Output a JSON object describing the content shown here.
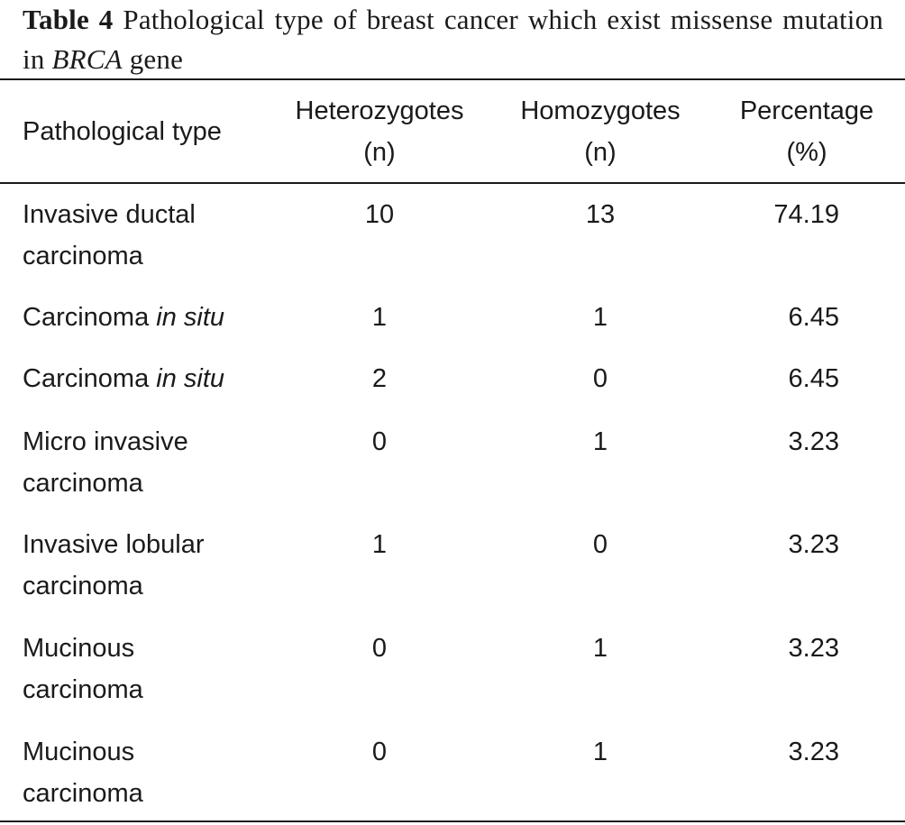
{
  "caption": {
    "label": "Table 4",
    "text_before_italic": " Pathological type of breast cancer which exist missense mutation in ",
    "italic": "BRCA",
    "text_after_italic": " gene"
  },
  "table": {
    "headers": {
      "pathological_type": "Pathological type",
      "heterozygotes_line1": "Heterozygotes",
      "heterozygotes_line2": "(n)",
      "homozygotes_line1": "Homozygotes",
      "homozygotes_line2": "(n)",
      "percentage_line1": "Percentage",
      "percentage_line2": "(%)"
    },
    "rows": [
      {
        "type_line1": "Invasive ductal",
        "type_line2": "carcinoma",
        "type_italic": "",
        "heterozygotes": "10",
        "homozygotes": "13",
        "percentage": "74.19"
      },
      {
        "type_line1": "Carcinoma ",
        "type_line2": "",
        "type_italic": "in situ",
        "heterozygotes": "1",
        "homozygotes": "1",
        "percentage": "6.45"
      },
      {
        "type_line1": "Carcinoma ",
        "type_line2": "",
        "type_italic": "in situ",
        "heterozygotes": "2",
        "homozygotes": "0",
        "percentage": "6.45"
      },
      {
        "type_line1": "Micro invasive",
        "type_line2": "carcinoma",
        "type_italic": "",
        "heterozygotes": "0",
        "homozygotes": "1",
        "percentage": "3.23"
      },
      {
        "type_line1": "Invasive lobular",
        "type_line2": "carcinoma",
        "type_italic": "",
        "heterozygotes": "1",
        "homozygotes": "0",
        "percentage": "3.23"
      },
      {
        "type_line1": "Mucinous",
        "type_line2": "carcinoma",
        "type_italic": "",
        "heterozygotes": "0",
        "homozygotes": "1",
        "percentage": "3.23"
      },
      {
        "type_line1": "Mucinous",
        "type_line2": "carcinoma",
        "type_italic": "",
        "heterozygotes": "0",
        "homozygotes": "1",
        "percentage": "3.23"
      }
    ]
  }
}
